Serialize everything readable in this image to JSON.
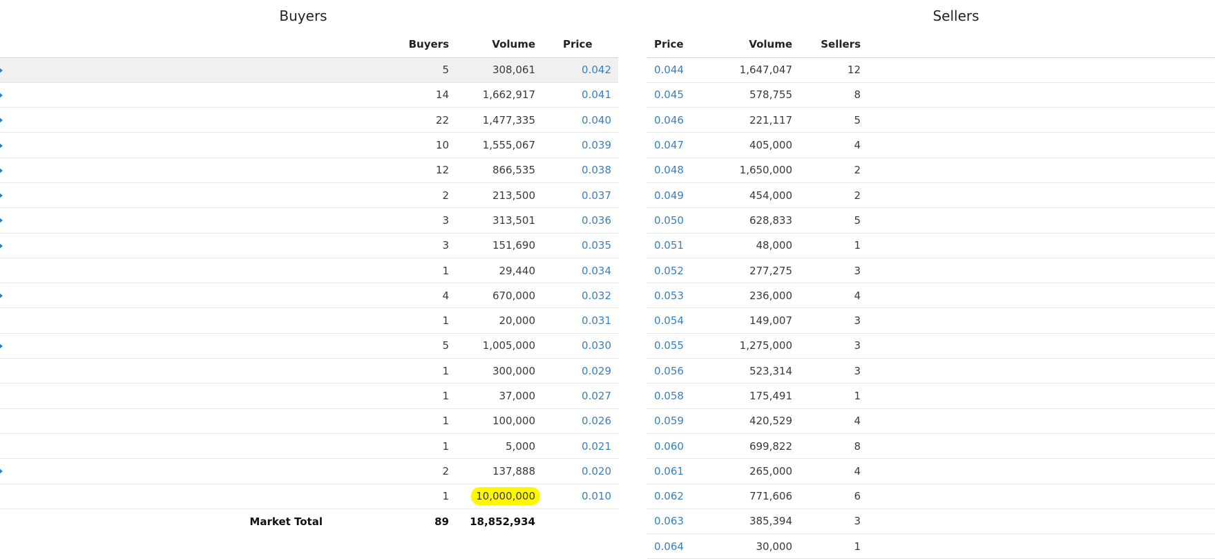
{
  "buyers": {
    "title": "Buyers",
    "headers": {
      "count": "Buyers",
      "volume": "Volume",
      "price": "Price"
    },
    "rows": [
      {
        "count": "5",
        "volume": "308,061",
        "price": "0.042",
        "marker": true
      },
      {
        "count": "14",
        "volume": "1,662,917",
        "price": "0.041",
        "marker": true
      },
      {
        "count": "22",
        "volume": "1,477,335",
        "price": "0.040",
        "marker": true
      },
      {
        "count": "10",
        "volume": "1,555,067",
        "price": "0.039",
        "marker": true
      },
      {
        "count": "12",
        "volume": "866,535",
        "price": "0.038",
        "marker": true
      },
      {
        "count": "2",
        "volume": "213,500",
        "price": "0.037",
        "marker": true
      },
      {
        "count": "3",
        "volume": "313,501",
        "price": "0.036",
        "marker": true
      },
      {
        "count": "3",
        "volume": "151,690",
        "price": "0.035",
        "marker": true
      },
      {
        "count": "1",
        "volume": "29,440",
        "price": "0.034",
        "marker": false
      },
      {
        "count": "4",
        "volume": "670,000",
        "price": "0.032",
        "marker": true
      },
      {
        "count": "1",
        "volume": "20,000",
        "price": "0.031",
        "marker": false
      },
      {
        "count": "5",
        "volume": "1,005,000",
        "price": "0.030",
        "marker": true
      },
      {
        "count": "1",
        "volume": "300,000",
        "price": "0.029",
        "marker": false
      },
      {
        "count": "1",
        "volume": "37,000",
        "price": "0.027",
        "marker": false
      },
      {
        "count": "1",
        "volume": "100,000",
        "price": "0.026",
        "marker": false
      },
      {
        "count": "1",
        "volume": "5,000",
        "price": "0.021",
        "marker": false
      },
      {
        "count": "2",
        "volume": "137,888",
        "price": "0.020",
        "marker": true
      },
      {
        "count": "1",
        "volume": "10,000,000",
        "price": "0.010",
        "marker": false,
        "highlight": true
      }
    ],
    "total": {
      "label": "Market Total",
      "count": "89",
      "volume": "18,852,934"
    }
  },
  "sellers": {
    "title": "Sellers",
    "headers": {
      "price": "Price",
      "volume": "Volume",
      "count": "Sellers"
    },
    "rows": [
      {
        "price": "0.044",
        "volume": "1,647,047",
        "count": "12"
      },
      {
        "price": "0.045",
        "volume": "578,755",
        "count": "8"
      },
      {
        "price": "0.046",
        "volume": "221,117",
        "count": "5"
      },
      {
        "price": "0.047",
        "volume": "405,000",
        "count": "4"
      },
      {
        "price": "0.048",
        "volume": "1,650,000",
        "count": "2"
      },
      {
        "price": "0.049",
        "volume": "454,000",
        "count": "2"
      },
      {
        "price": "0.050",
        "volume": "628,833",
        "count": "5"
      },
      {
        "price": "0.051",
        "volume": "48,000",
        "count": "1"
      },
      {
        "price": "0.052",
        "volume": "277,275",
        "count": "3"
      },
      {
        "price": "0.053",
        "volume": "236,000",
        "count": "4"
      },
      {
        "price": "0.054",
        "volume": "149,007",
        "count": "3"
      },
      {
        "price": "0.055",
        "volume": "1,275,000",
        "count": "3"
      },
      {
        "price": "0.056",
        "volume": "523,314",
        "count": "3"
      },
      {
        "price": "0.058",
        "volume": "175,491",
        "count": "1"
      },
      {
        "price": "0.059",
        "volume": "420,529",
        "count": "4"
      },
      {
        "price": "0.060",
        "volume": "699,822",
        "count": "8"
      },
      {
        "price": "0.061",
        "volume": "265,000",
        "count": "4"
      },
      {
        "price": "0.062",
        "volume": "771,606",
        "count": "6"
      },
      {
        "price": "0.063",
        "volume": "385,394",
        "count": "3"
      },
      {
        "price": "0.064",
        "volume": "30,000",
        "count": "1"
      }
    ]
  },
  "colors": {
    "price_link": "#3a7fbf",
    "highlight": "#fff700",
    "marker": "#2a7fc0",
    "first_row_bg": "#f0f0f0"
  },
  "icons": {
    "row_marker": "play-triangle-icon"
  }
}
